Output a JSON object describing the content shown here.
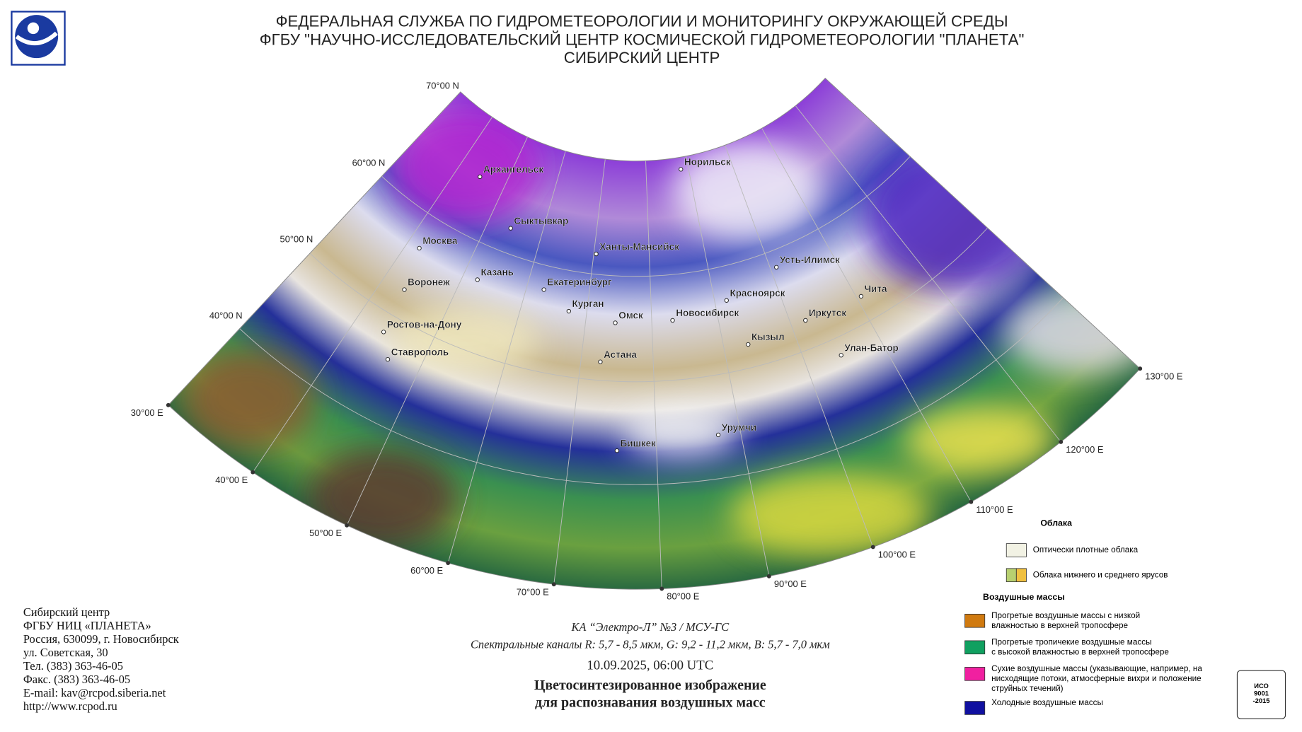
{
  "header": {
    "lines": [
      "ФЕДЕРАЛЬНАЯ СЛУЖБА ПО ГИДРОМЕТЕОРОЛОГИИ И МОНИТОРИНГУ ОКРУЖАЮЩЕЙ СРЕДЫ",
      "ФГБУ \"НАУЧНО-ИССЛЕДОВАТЕЛЬСКИЙ ЦЕНТР КОСМИЧЕСКОЙ ГИДРОМЕТЕОРОЛОГИИ \"ПЛАНЕТА\"",
      "СИБИРСКИЙ ЦЕНТР"
    ]
  },
  "map": {
    "latitude_labels": [
      "70°00 N",
      "60°00 N",
      "50°00 N",
      "40°00 N"
    ],
    "longitude_labels": [
      "30°00 E",
      "40°00 E",
      "50°00 E",
      "60°00 E",
      "70°00 E",
      "80°00 E",
      "90°00 E",
      "100°00 E",
      "110°00 E",
      "120°00 E",
      "130°00 E"
    ],
    "cities": [
      "Архангельск",
      "Сыктывкар",
      "Москва",
      "Казань",
      "Воронеж",
      "Ростов-на-Дону",
      "Ставрополь",
      "Ханты-Мансийск",
      "Екатеринбург",
      "Курган",
      "Омск",
      "Астана",
      "Новосибирск",
      "Норильск",
      "Красноярск",
      "Усть-Илимск",
      "Иркутск",
      "Чита",
      "Кызыл",
      "Улан-Батор",
      "Урумчи",
      "Бишкек"
    ]
  },
  "legend": {
    "clouds_title": "Облака",
    "clouds": [
      {
        "lines": [
          "Оптически плотные облака"
        ],
        "colors": [
          "#f2f2e4"
        ]
      },
      {
        "lines": [
          "Облака нижнего и среднего ярусов"
        ],
        "colors": [
          "#b8d070",
          "#f0c040"
        ]
      }
    ],
    "air_masses_title": "Воздушные массы",
    "air_masses": [
      {
        "lines": [
          "Прогретые воздушные массы с низкой",
          "влажностью в верхней тропосфере"
        ],
        "colors": [
          "#d07a10"
        ]
      },
      {
        "lines": [
          "Прогретые тропичекие воздушные массы",
          "с высокой влажностью в верхней тропосфере"
        ],
        "colors": [
          "#10a060"
        ]
      },
      {
        "lines": [
          "Сухие воздушные массы (указывающие, например, на",
          "нисходящие потоки, атмосферные вихри и положение",
          "струйных течений)"
        ],
        "colors": [
          "#f020a0"
        ]
      },
      {
        "lines": [
          "Холодные воздушные массы"
        ],
        "colors": [
          "#1010a0"
        ]
      }
    ]
  },
  "caption": {
    "satellite": "КА “Электро-Л” №3 / МСУ-ГС",
    "channels": "Спектральные каналы R: 5,7 - 8,5 мкм, G: 9,2 - 11,2 мкм, B: 5,7 - 7,0 мкм",
    "datetime": "10.09.2025, 06:00 UTC",
    "title_lines": [
      "Цветосинтезированное изображение",
      "для распознавания воздушных масс"
    ]
  },
  "contacts": [
    "Сибирский центр",
    "ФГБУ НИЦ «ПЛАНЕТА»",
    "Россия, 630099, г. Новосибирск",
    "ул. Советская, 30",
    "Тел. (383) 363-46-05",
    "Факс. (383) 363-46-05",
    "E-mail: kav@rcpod.siberia.net",
    "http://www.rcpod.ru"
  ],
  "badge": [
    "ИСО",
    "9001",
    "-2015"
  ]
}
